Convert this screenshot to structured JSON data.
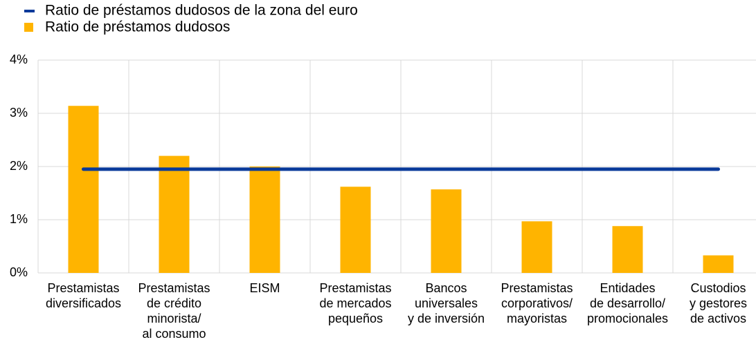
{
  "chart_data": {
    "type": "bar",
    "categories": [
      [
        "Prestamistas",
        "diversificados"
      ],
      [
        "Prestamistas",
        "de crédito",
        "minorista/",
        "al consumo"
      ],
      [
        "EISM"
      ],
      [
        "Prestamistas",
        "de mercados",
        "pequeños"
      ],
      [
        "Bancos",
        "universales",
        "y de inversión"
      ],
      [
        "Prestamistas",
        "corporativos/",
        "mayoristas"
      ],
      [
        "Entidades",
        "de desarrollo/",
        "promocionales"
      ],
      [
        "Custodios",
        "y gestores",
        "de activos"
      ]
    ],
    "series": [
      {
        "name": "Ratio de préstamos dudosos de la zona del euro",
        "type": "line",
        "color": "#0a3a9a",
        "values": [
          1.95,
          1.95,
          1.95,
          1.95,
          1.95,
          1.95,
          1.95,
          1.95
        ]
      },
      {
        "name": "Ratio de préstamos dudosos",
        "type": "bar",
        "color": "#ffb400",
        "values": [
          3.14,
          2.2,
          2.0,
          1.62,
          1.57,
          0.97,
          0.88,
          0.33
        ]
      }
    ],
    "ylim": [
      0,
      4
    ],
    "yticks": [
      {
        "value": 0,
        "label": "0%"
      },
      {
        "value": 1,
        "label": "1%"
      },
      {
        "value": 2,
        "label": "2%"
      },
      {
        "value": 3,
        "label": "3%"
      },
      {
        "value": 4,
        "label": "4%"
      }
    ],
    "grid": true
  }
}
